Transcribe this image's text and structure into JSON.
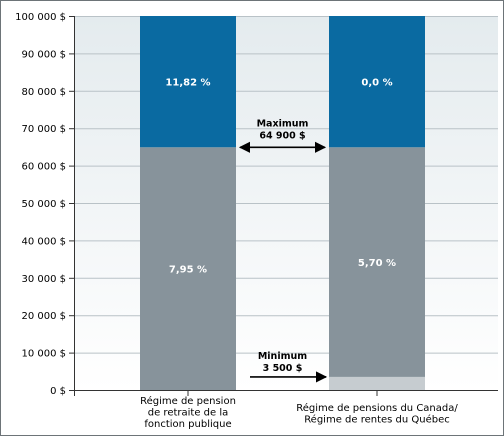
{
  "chart_data": {
    "type": "bar",
    "stacked": true,
    "ylim": [
      0,
      100000
    ],
    "y_ticks": [
      0,
      10000,
      20000,
      30000,
      40000,
      50000,
      60000,
      70000,
      80000,
      90000,
      100000
    ],
    "y_tick_labels": [
      "0 $",
      "10 000 $",
      "20 000 $",
      "30 000 $",
      "40 000 $",
      "50 000 $",
      "60 000 $",
      "70 000 $",
      "80 000 $",
      "90 000 $",
      "100 000 $"
    ],
    "categories": [
      [
        "Régime de pension",
        "de retraite de la",
        "fonction publique"
      ],
      [
        "Régime de pensions du Canada/",
        "Régime de rentes du Québec"
      ]
    ],
    "bars": [
      {
        "segments": [
          {
            "from": 0,
            "to": 64900,
            "label": "7,95 %",
            "color": "#87939b"
          },
          {
            "from": 64900,
            "to": 100000,
            "label": "11,82 %",
            "color": "#0a6aa1"
          }
        ]
      },
      {
        "segments": [
          {
            "from": 0,
            "to": 3500,
            "label": "",
            "color": "#c6ccd0"
          },
          {
            "from": 3500,
            "to": 64900,
            "label": "5,70 %",
            "color": "#87939b"
          },
          {
            "from": 64900,
            "to": 100000,
            "label": "0,0 %",
            "color": "#0a6aa1"
          }
        ]
      }
    ],
    "annotations": {
      "maximum": {
        "title": "Maximum",
        "value_label": "64 900 $",
        "value": 64900
      },
      "minimum": {
        "title": "Minimum",
        "value_label": "3 500 $",
        "value": 3500
      }
    },
    "colors": {
      "plot_background_top": "#e4ebee",
      "plot_background_bottom": "#ffffff",
      "border": "#6d7478",
      "axis": "#333333"
    }
  }
}
